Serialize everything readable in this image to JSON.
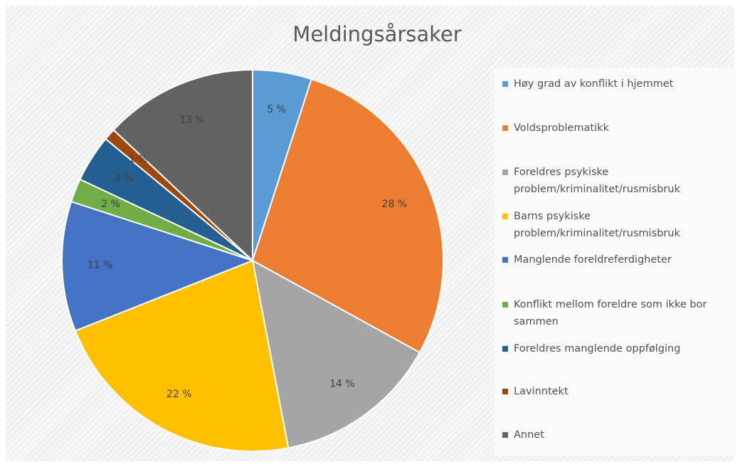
{
  "chart_data": {
    "type": "pie",
    "title": "Meldingsårsaker",
    "categories": [
      "Høy grad av konflikt i hjemmet",
      "Voldsproblematikk",
      "Foreldres psykiske problem/kriminalitet/rusmisbruk",
      "Barns psykiske problem/kriminalitet/rusmisbruk",
      "Manglende foreldreferdigheter",
      "Konflikt mellom foreldre som ikke bor sammen",
      "Foreldres manglende oppfølging",
      "Lavinntekt",
      "Annet"
    ],
    "values": [
      5,
      28,
      14,
      22,
      11,
      2,
      4,
      1,
      13
    ],
    "value_labels": [
      "5 %",
      "28 %",
      "14 %",
      "22 %",
      "11 %",
      "2 %",
      "4 %",
      "1 %",
      "13 %"
    ],
    "colors": [
      "#5b9bd5",
      "#ed7d31",
      "#a5a5a5",
      "#ffc000",
      "#4472c4",
      "#70ad47",
      "#255e91",
      "#9e480e",
      "#636363"
    ],
    "legend": "right"
  }
}
